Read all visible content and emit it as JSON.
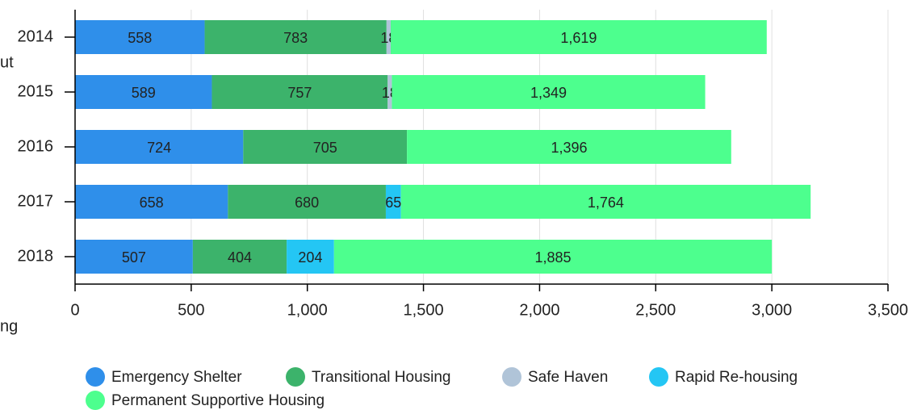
{
  "chart_data": {
    "type": "stacked_barh",
    "categories": [
      "2014",
      "2015",
      "2016",
      "2017",
      "2018"
    ],
    "series": [
      {
        "name": "Emergency Shelter",
        "color": "#2f8fea",
        "values": [
          558,
          589,
          724,
          658,
          507
        ]
      },
      {
        "name": "Transitional Housing",
        "color": "#3cb36b",
        "values": [
          783,
          757,
          705,
          680,
          404
        ]
      },
      {
        "name": "Safe Haven",
        "color": "#b0c4d8",
        "values": [
          18,
          18,
          null,
          null,
          null
        ]
      },
      {
        "name": "Rapid Re-housing",
        "color": "#24c6f4",
        "values": [
          null,
          null,
          null,
          65,
          204
        ]
      },
      {
        "name": "Permanent Supportive Housing",
        "color": "#4dff8e",
        "values": [
          1619,
          1349,
          1396,
          1764,
          1885
        ],
        "value_labels": [
          "1,619",
          "1,349",
          "1,396",
          "1,764",
          "1,885"
        ]
      }
    ],
    "xlim": [
      0,
      3500
    ],
    "xticks": [
      0,
      500,
      {
        "value": 1000,
        "label": "1,000"
      },
      {
        "value": 1500,
        "label": "1,500"
      },
      {
        "value": 2000,
        "label": "2,000"
      },
      {
        "value": 2500,
        "label": "2,500"
      },
      {
        "value": 3000,
        "label": "3,000"
      },
      {
        "value": 3500,
        "label": "3,500"
      }
    ],
    "grid": true,
    "legend": "bottom",
    "annotations": [
      "ut",
      "ng"
    ]
  }
}
